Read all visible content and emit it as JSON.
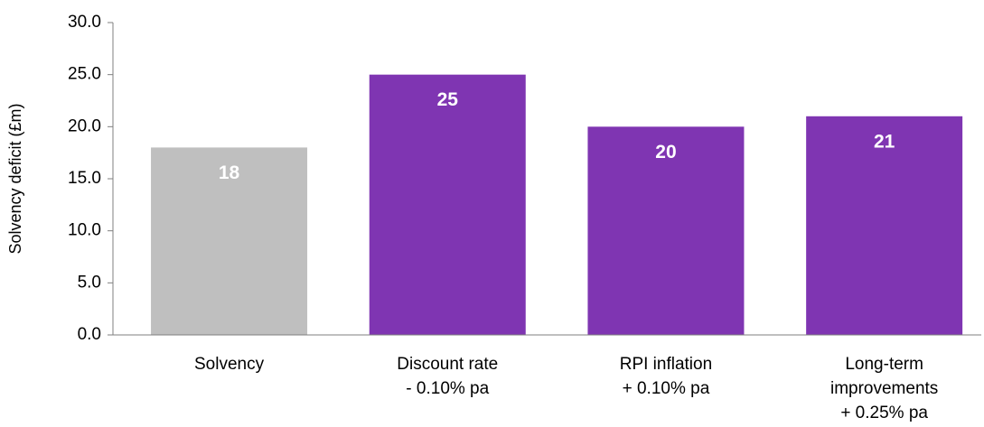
{
  "chart_data": {
    "type": "bar",
    "y_label": "Solvency deficit (£m)",
    "categories": [
      "Solvency",
      "Discount rate\n- 0.10% pa",
      "RPI inflation\n+ 0.10% pa",
      "Long-term\nimprovements\n+ 0.25% pa"
    ],
    "values": [
      18,
      25,
      20,
      21
    ],
    "colors": [
      "#bfbfbf",
      "#7f35b2",
      "#7f35b2",
      "#7f35b2"
    ],
    "ylim": [
      0,
      30
    ],
    "yticks": [
      {
        "value": 0,
        "label": "0.0"
      },
      {
        "value": 5,
        "label": "5.0"
      },
      {
        "value": 10,
        "label": "10.0"
      },
      {
        "value": 15,
        "label": "15.0"
      },
      {
        "value": 20,
        "label": "20.0"
      },
      {
        "value": 25,
        "label": "25.0"
      },
      {
        "value": 30,
        "label": "30.0"
      }
    ]
  }
}
